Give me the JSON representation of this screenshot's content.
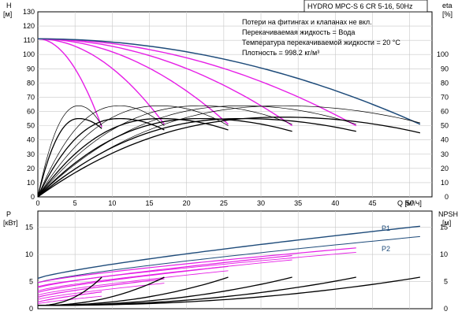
{
  "title_box": "HYDRO MPC-S 6 CR 5-16, 50Hz",
  "notes": [
    "Потери на фитингах и клапанах не вкл.",
    "Перекачиваемая жидкость = Вода",
    "Температура перекачиваемой жидкости = 20 °C",
    "Плотность = 998.2 кг/м³"
  ],
  "colors": {
    "black": "#000000",
    "magenta": "#e61ee6",
    "blue": "#1e4b7a",
    "grid": "#c8c8c8",
    "frame": "#000000"
  },
  "chart_data": [
    {
      "type": "line",
      "name": "head-efficiency",
      "xlabel": "Q [м³/ч]",
      "ylabel_left": "H [м]",
      "ylabel_right": "eta [%]",
      "xlim": [
        0,
        53
      ],
      "ylim": [
        0,
        130
      ],
      "x_ticks": [
        0,
        5,
        10,
        15,
        20,
        25,
        30,
        35,
        40,
        45,
        50
      ],
      "y_ticks_left": [
        0,
        10,
        20,
        30,
        40,
        50,
        60,
        70,
        80,
        90,
        100,
        110,
        120,
        130
      ],
      "y_ticks_right": [
        0,
        10,
        20,
        30,
        40,
        50,
        60,
        70,
        80,
        90,
        100
      ],
      "grid": true,
      "head_curves_magenta": [
        {
          "qmax": 8.6,
          "end": 49
        },
        {
          "qmax": 17.0,
          "end": 51
        },
        {
          "qmax": 25.6,
          "end": 51
        },
        {
          "qmax": 34.2,
          "end": 50
        },
        {
          "qmax": 42.8,
          "end": 50
        }
      ],
      "head_curve_blue": {
        "qmax": 51.4,
        "start": 111,
        "end": 51
      },
      "efficiency_curves": [
        {
          "qmax": 8.6,
          "peak_q": 5.5,
          "peak": 64,
          "end": 50
        },
        {
          "qmax": 17.0,
          "peak_q": 11.0,
          "peak": 64,
          "end": 50
        },
        {
          "qmax": 25.6,
          "peak_q": 16.5,
          "peak": 64,
          "end": 50
        },
        {
          "qmax": 34.2,
          "peak_q": 22.0,
          "peak": 64,
          "end": 51
        },
        {
          "qmax": 42.8,
          "peak_q": 27.5,
          "peak": 64,
          "end": 51
        },
        {
          "qmax": 51.4,
          "peak_q": 33.0,
          "peak": 64,
          "end": 52
        }
      ],
      "npsh_like_curves": [
        {
          "qmax": 8.6,
          "peak_q": 5.5,
          "peak": 55,
          "end": 48
        },
        {
          "qmax": 17.0,
          "peak_q": 11.0,
          "peak": 55,
          "end": 47
        },
        {
          "qmax": 25.6,
          "peak_q": 16.5,
          "peak": 55,
          "end": 47
        },
        {
          "qmax": 34.2,
          "peak_q": 22.0,
          "peak": 55,
          "end": 46
        },
        {
          "qmax": 42.8,
          "peak_q": 27.5,
          "peak": 55,
          "end": 46
        },
        {
          "qmax": 51.4,
          "peak_q": 33.0,
          "peak": 56,
          "end": 45
        }
      ]
    },
    {
      "type": "line",
      "name": "power-npsh",
      "ylabel_left": "P [кВт]",
      "ylabel_right": "NPSH [м]",
      "xlim": [
        0,
        53
      ],
      "ylim": [
        0,
        18
      ],
      "y_ticks_left": [
        0,
        5,
        10,
        15
      ],
      "y_ticks_right": [
        0,
        5,
        10,
        15
      ],
      "grid": true,
      "series_labels": [
        "P1",
        "P2"
      ],
      "p1_curve": {
        "start": 5.6,
        "end": 15.2,
        "qmax": 51.4
      },
      "p2_curve": {
        "start": 4.8,
        "end": 13.3,
        "qmax": 51.4
      },
      "magenta_power_ends": [
        {
          "qmax": 8.6,
          "end": 3.1
        },
        {
          "qmax": 17.0,
          "end": 5.5
        },
        {
          "qmax": 25.6,
          "end": 7.8
        },
        {
          "qmax": 34.2,
          "end": 9.8
        },
        {
          "qmax": 42.8,
          "end": 11.2
        }
      ],
      "npsh_curves": [
        {
          "qmax": 8.6,
          "end": 5.8
        },
        {
          "qmax": 17.0,
          "end": 5.8
        },
        {
          "qmax": 25.6,
          "end": 5.8
        },
        {
          "qmax": 34.2,
          "end": 5.8
        },
        {
          "qmax": 42.8,
          "end": 5.8
        },
        {
          "qmax": 51.4,
          "end": 5.8
        }
      ]
    }
  ]
}
